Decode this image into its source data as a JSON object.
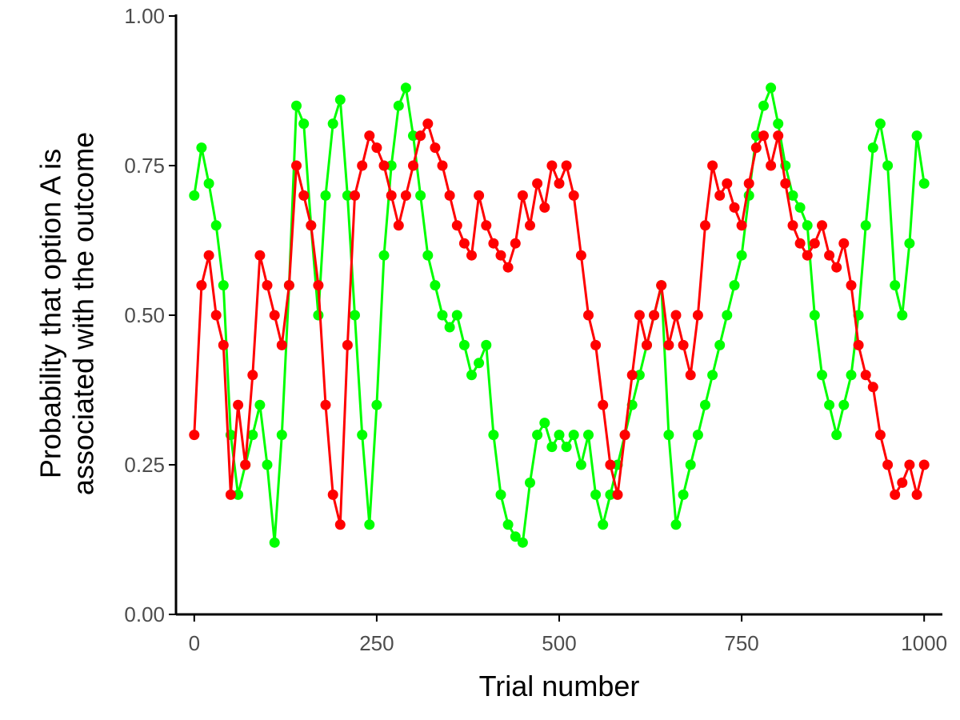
{
  "chart_data": {
    "type": "line",
    "xlabel": "Trial number",
    "ylabel_lines": [
      "Probability that option A is",
      "associated with the outcome"
    ],
    "xlim": [
      -25,
      1025
    ],
    "ylim": [
      0,
      1
    ],
    "xticks": [
      0,
      250,
      500,
      750,
      1000
    ],
    "xtick_labels": [
      "0",
      "250",
      "500",
      "750",
      "1000"
    ],
    "yticks": [
      0,
      0.25,
      0.5,
      0.75,
      1
    ],
    "ytick_labels": [
      "0.00",
      "0.25",
      "0.50",
      "0.75",
      "1.00"
    ],
    "grid": false,
    "legend": "none",
    "markers": true,
    "series": [
      {
        "color": "#00ff00",
        "x": [
          0,
          10,
          20,
          30,
          40,
          50,
          60,
          70,
          80,
          90,
          100,
          110,
          120,
          130,
          140,
          150,
          160,
          170,
          180,
          190,
          200,
          210,
          220,
          230,
          240,
          250,
          260,
          270,
          280,
          290,
          300,
          310,
          320,
          330,
          340,
          350,
          360,
          370,
          380,
          390,
          400,
          410,
          420,
          430,
          440,
          450,
          460,
          470,
          480,
          490,
          500,
          510,
          520,
          530,
          540,
          550,
          560,
          570,
          580,
          590,
          600,
          610,
          620,
          630,
          640,
          650,
          660,
          670,
          680,
          690,
          700,
          710,
          720,
          730,
          740,
          750,
          760,
          770,
          780,
          790,
          800,
          810,
          820,
          830,
          840,
          850,
          860,
          870,
          880,
          890,
          900,
          910,
          920,
          930,
          940,
          950,
          960,
          970,
          980,
          990,
          1000
        ],
        "y": [
          0.7,
          0.78,
          0.72,
          0.65,
          0.55,
          0.3,
          0.2,
          0.25,
          0.3,
          0.35,
          0.25,
          0.12,
          0.3,
          0.55,
          0.85,
          0.82,
          0.65,
          0.5,
          0.7,
          0.82,
          0.86,
          0.7,
          0.5,
          0.3,
          0.15,
          0.35,
          0.6,
          0.75,
          0.85,
          0.88,
          0.8,
          0.7,
          0.6,
          0.55,
          0.5,
          0.48,
          0.5,
          0.45,
          0.4,
          0.42,
          0.45,
          0.3,
          0.2,
          0.15,
          0.13,
          0.12,
          0.22,
          0.3,
          0.32,
          0.28,
          0.3,
          0.28,
          0.3,
          0.25,
          0.3,
          0.2,
          0.15,
          0.2,
          0.25,
          0.3,
          0.35,
          0.4,
          0.45,
          0.5,
          0.55,
          0.3,
          0.15,
          0.2,
          0.25,
          0.3,
          0.35,
          0.4,
          0.45,
          0.5,
          0.55,
          0.6,
          0.7,
          0.8,
          0.85,
          0.88,
          0.82,
          0.75,
          0.7,
          0.68,
          0.65,
          0.5,
          0.4,
          0.35,
          0.3,
          0.35,
          0.4,
          0.5,
          0.65,
          0.78,
          0.82,
          0.75,
          0.55,
          0.5,
          0.62,
          0.8,
          0.72
        ]
      },
      {
        "color": "#ff0000",
        "x": [
          0,
          10,
          20,
          30,
          40,
          50,
          60,
          70,
          80,
          90,
          100,
          110,
          120,
          130,
          140,
          150,
          160,
          170,
          180,
          190,
          200,
          210,
          220,
          230,
          240,
          250,
          260,
          270,
          280,
          290,
          300,
          310,
          320,
          330,
          340,
          350,
          360,
          370,
          380,
          390,
          400,
          410,
          420,
          430,
          440,
          450,
          460,
          470,
          480,
          490,
          500,
          510,
          520,
          530,
          540,
          550,
          560,
          570,
          580,
          590,
          600,
          610,
          620,
          630,
          640,
          650,
          660,
          670,
          680,
          690,
          700,
          710,
          720,
          730,
          740,
          750,
          760,
          770,
          780,
          790,
          800,
          810,
          820,
          830,
          840,
          850,
          860,
          870,
          880,
          890,
          900,
          910,
          920,
          930,
          940,
          950,
          960,
          970,
          980,
          990,
          1000
        ],
        "y": [
          0.3,
          0.55,
          0.6,
          0.5,
          0.45,
          0.2,
          0.35,
          0.25,
          0.4,
          0.6,
          0.55,
          0.5,
          0.45,
          0.55,
          0.75,
          0.7,
          0.65,
          0.55,
          0.35,
          0.2,
          0.15,
          0.45,
          0.7,
          0.75,
          0.8,
          0.78,
          0.75,
          0.7,
          0.65,
          0.7,
          0.75,
          0.8,
          0.82,
          0.78,
          0.75,
          0.7,
          0.65,
          0.62,
          0.6,
          0.7,
          0.65,
          0.62,
          0.6,
          0.58,
          0.62,
          0.7,
          0.65,
          0.72,
          0.68,
          0.75,
          0.72,
          0.75,
          0.7,
          0.6,
          0.5,
          0.45,
          0.35,
          0.25,
          0.2,
          0.3,
          0.4,
          0.5,
          0.45,
          0.5,
          0.55,
          0.45,
          0.5,
          0.45,
          0.4,
          0.5,
          0.65,
          0.75,
          0.7,
          0.72,
          0.68,
          0.65,
          0.72,
          0.78,
          0.8,
          0.75,
          0.8,
          0.72,
          0.65,
          0.62,
          0.6,
          0.62,
          0.65,
          0.6,
          0.58,
          0.62,
          0.55,
          0.45,
          0.4,
          0.38,
          0.3,
          0.25,
          0.2,
          0.22,
          0.25,
          0.2,
          0.25
        ]
      }
    ]
  }
}
